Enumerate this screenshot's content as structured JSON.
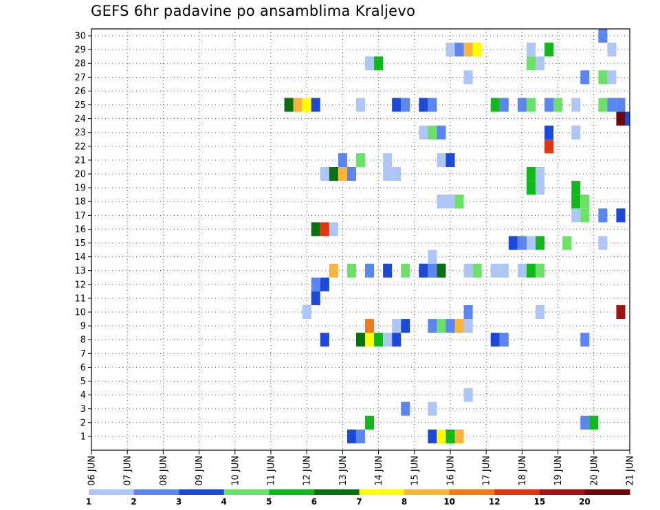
{
  "title": "GEFS 6hr padavine po ansamblima Kraljevo",
  "chart_data": {
    "type": "heatmap",
    "title": "GEFS 6hr padavine po ansamblima Kraljevo",
    "y_categories": [
      "1",
      "2",
      "3",
      "4",
      "5",
      "6",
      "7",
      "8",
      "9",
      "10",
      "11",
      "12",
      "13",
      "14",
      "15",
      "16",
      "17",
      "18",
      "19",
      "20",
      "21",
      "22",
      "23",
      "24",
      "25",
      "26",
      "27",
      "28",
      "29",
      "30"
    ],
    "x_tick_labels": [
      "06 JUN",
      "07 JUN",
      "08 JUN",
      "09 JUN",
      "10 JUN",
      "11 JUN",
      "12 JUN",
      "13 JUN",
      "14 JUN",
      "15 JUN",
      "16 JUN",
      "17 JUN",
      "18 JUN",
      "19 JUN",
      "20 JUN",
      "21 JUN"
    ],
    "x_range_days": [
      0,
      15
    ],
    "step_hours": 6,
    "grid": true,
    "colorbar": {
      "tick_labels": [
        "1",
        "2",
        "3",
        "4",
        "5",
        "6",
        "7",
        "8",
        "10",
        "12",
        "15",
        "20"
      ],
      "colors": [
        "#aec6f5",
        "#5b86ef",
        "#1c49d8",
        "#6de06a",
        "#11b81c",
        "#0a6e12",
        "#ffff00",
        "#fbb43a",
        "#f47a18",
        "#e03412",
        "#a11414",
        "#6c0a0a"
      ]
    },
    "cells_note": "each cell: [ensemble member, day offset from 06 JUN, class index into colorbar.colors]",
    "cells": [
      [
        1,
        7.25,
        2
      ],
      [
        1,
        7.5,
        1
      ],
      [
        1,
        9.5,
        2
      ],
      [
        1,
        9.75,
        6
      ],
      [
        1,
        10,
        4
      ],
      [
        1,
        10.25,
        7
      ],
      [
        2,
        7.75,
        4
      ],
      [
        2,
        13.75,
        1
      ],
      [
        2,
        14,
        4
      ],
      [
        3,
        8.75,
        1
      ],
      [
        3,
        9.5,
        0
      ],
      [
        4,
        10.5,
        0
      ],
      [
        8,
        6.5,
        2
      ],
      [
        8,
        7.5,
        5
      ],
      [
        8,
        7.75,
        6
      ],
      [
        8,
        8,
        4
      ],
      [
        8,
        8.25,
        0
      ],
      [
        8,
        8.5,
        2
      ],
      [
        8,
        11.25,
        2
      ],
      [
        8,
        11.5,
        1
      ],
      [
        8,
        13.75,
        1
      ],
      [
        9,
        7.75,
        8
      ],
      [
        9,
        8.5,
        0
      ],
      [
        9,
        8.75,
        2
      ],
      [
        9,
        9.5,
        1
      ],
      [
        9,
        9.75,
        3
      ],
      [
        9,
        10,
        1
      ],
      [
        9,
        10.25,
        7
      ],
      [
        9,
        10.5,
        0
      ],
      [
        10,
        6,
        0
      ],
      [
        10,
        10.5,
        1
      ],
      [
        10,
        12.5,
        0
      ],
      [
        10,
        14.75,
        10
      ],
      [
        11,
        6.25,
        2
      ],
      [
        12,
        6.25,
        1
      ],
      [
        12,
        6.5,
        2
      ],
      [
        13,
        6.75,
        7
      ],
      [
        13,
        7.25,
        3
      ],
      [
        13,
        7.75,
        1
      ],
      [
        13,
        8.25,
        2
      ],
      [
        13,
        8.75,
        3
      ],
      [
        13,
        9.25,
        2
      ],
      [
        13,
        9.5,
        1
      ],
      [
        13,
        9.75,
        5
      ],
      [
        13,
        10.5,
        0
      ],
      [
        13,
        10.75,
        3
      ],
      [
        13,
        11.25,
        0
      ],
      [
        13,
        11.5,
        0
      ],
      [
        13,
        12,
        0
      ],
      [
        13,
        12.25,
        4
      ],
      [
        13,
        12.5,
        3
      ],
      [
        14,
        9.5,
        0
      ],
      [
        15,
        11.75,
        2
      ],
      [
        15,
        12,
        1
      ],
      [
        15,
        12.25,
        0
      ],
      [
        15,
        12.5,
        4
      ],
      [
        15,
        13.25,
        3
      ],
      [
        15,
        14.25,
        0
      ],
      [
        16,
        6.25,
        5
      ],
      [
        16,
        6.5,
        9
      ],
      [
        16,
        6.75,
        0
      ],
      [
        17,
        13.5,
        0
      ],
      [
        17,
        13.75,
        3
      ],
      [
        17,
        14.25,
        1
      ],
      [
        17,
        14.75,
        2
      ],
      [
        18,
        9.75,
        0
      ],
      [
        18,
        10,
        0
      ],
      [
        18,
        10.25,
        3
      ],
      [
        18,
        13.5,
        4
      ],
      [
        18,
        13.75,
        3
      ],
      [
        19,
        12.25,
        4
      ],
      [
        19,
        12.5,
        0
      ],
      [
        19,
        13.5,
        4
      ],
      [
        20,
        6.5,
        0
      ],
      [
        20,
        6.75,
        5
      ],
      [
        20,
        7,
        7
      ],
      [
        20,
        7.25,
        1
      ],
      [
        20,
        8.25,
        0
      ],
      [
        20,
        8.5,
        0
      ],
      [
        20,
        12.25,
        4
      ],
      [
        20,
        12.5,
        0
      ],
      [
        21,
        7,
        1
      ],
      [
        21,
        7.5,
        3
      ],
      [
        21,
        8.25,
        0
      ],
      [
        21,
        9.75,
        0
      ],
      [
        21,
        10,
        2
      ],
      [
        22,
        12.75,
        9
      ],
      [
        23,
        9.25,
        0
      ],
      [
        23,
        9.5,
        3
      ],
      [
        23,
        9.75,
        1
      ],
      [
        23,
        12.75,
        2
      ],
      [
        23,
        13.5,
        0
      ],
      [
        24,
        14.75,
        11
      ],
      [
        24,
        15,
        2
      ],
      [
        25,
        5.5,
        5
      ],
      [
        25,
        5.75,
        7
      ],
      [
        25,
        6,
        6
      ],
      [
        25,
        6.25,
        2
      ],
      [
        25,
        7.5,
        0
      ],
      [
        25,
        8.5,
        2
      ],
      [
        25,
        8.75,
        1
      ],
      [
        25,
        9.25,
        2
      ],
      [
        25,
        9.5,
        1
      ],
      [
        25,
        11.25,
        4
      ],
      [
        25,
        11.5,
        1
      ],
      [
        25,
        12,
        1
      ],
      [
        25,
        12.25,
        3
      ],
      [
        25,
        12.75,
        1
      ],
      [
        25,
        13,
        3
      ],
      [
        25,
        13.5,
        0
      ],
      [
        25,
        14.25,
        3
      ],
      [
        25,
        14.5,
        1
      ],
      [
        25,
        14.75,
        1
      ],
      [
        27,
        10.5,
        0
      ],
      [
        27,
        13.75,
        1
      ],
      [
        27,
        14.25,
        3
      ],
      [
        27,
        14.5,
        0
      ],
      [
        28,
        7.75,
        0
      ],
      [
        28,
        8,
        4
      ],
      [
        28,
        12.25,
        3
      ],
      [
        28,
        12.5,
        0
      ],
      [
        29,
        10,
        0
      ],
      [
        29,
        10.25,
        1
      ],
      [
        29,
        10.5,
        7
      ],
      [
        29,
        10.75,
        6
      ],
      [
        29,
        12.25,
        0
      ],
      [
        29,
        12.75,
        4
      ],
      [
        29,
        14.5,
        0
      ],
      [
        30,
        14.25,
        1
      ]
    ]
  }
}
